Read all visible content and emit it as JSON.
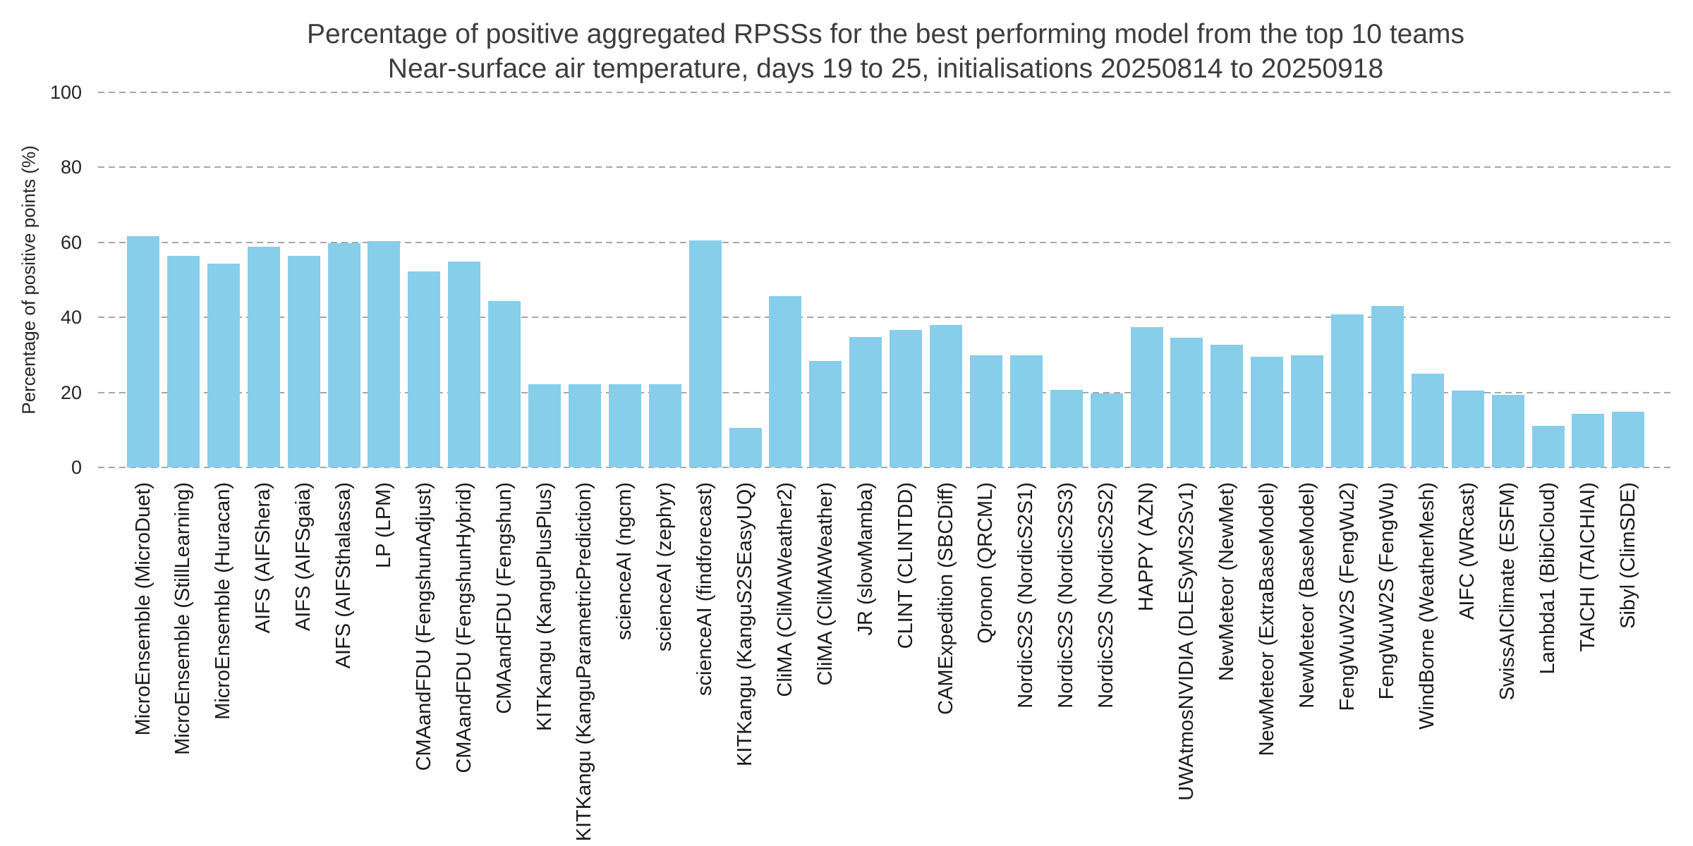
{
  "chart_data": {
    "type": "bar",
    "title": "Percentage of positive aggregated RPSSs for the best performing model from the top 10 teams",
    "subtitle": "Near-surface air temperature, days 19 to 25, initialisations 20250814 to 20250918",
    "ylabel": "Percentage of positive points (%)",
    "ylim": [
      0,
      100
    ],
    "yticks": [
      0,
      20,
      40,
      60,
      80,
      100
    ],
    "grid": {
      "orientation": "horizontal",
      "style": "dashed",
      "color": "#a6a6a6"
    },
    "legend": "none",
    "bar_color": "#87CEEB",
    "categories": [
      "MicroEnsemble (MicroDuet)",
      "MicroEnsemble (StillLearning)",
      "MicroEnsemble (Huracan)",
      "AIFS (AIFShera)",
      "AIFS (AIFSgaia)",
      "AIFS (AIFSthalassa)",
      "LP (LPM)",
      "CMAandFDU (FengshunAdjust)",
      "CMAandFDU (FengshunHybrid)",
      "CMAandFDU (Fengshun)",
      "KITKangu (KanguPlusPlus)",
      "KITKangu (KanguParametricPrediction)",
      "scienceAI (ngcm)",
      "scienceAI (zephyr)",
      "scienceAI (findforecast)",
      "KITKangu (KanguS2SEasyUQ)",
      "CliMA (CliMAWeather2)",
      "CliMA (CliMAWeather)",
      "JR (slowMamba)",
      "CLINT (CLINTDD)",
      "CAMExpedition (SBCDiff)",
      "Qronon (QRCML)",
      "NordicS2S (NordicS2S1)",
      "NordicS2S (NordicS2S3)",
      "NordicS2S (NordicS2S2)",
      "HAPPY (AZN)",
      "UWAtmosNVIDIA (DLESyMS2Sv1)",
      "NewMeteor (NewMet)",
      "NewMeteor (ExtraBaseModel)",
      "NewMeteor (BaseModel)",
      "FengWuW2S (FengWu2)",
      "FengWuW2S (FengWu)",
      "WindBorne (WeatherMesh)",
      "AIFC (WRcast)",
      "SwissAIClimate (ESFM)",
      "Lambda1 (BibiCloud)",
      "TAICHI (TAICHIAI)",
      "Sibyl (ClimSDE)"
    ],
    "values": [
      61.6,
      56.3,
      54.4,
      58.9,
      56.3,
      59.8,
      60.4,
      52.3,
      54.8,
      44.3,
      22.2,
      22.2,
      22.2,
      22.2,
      60.6,
      10.5,
      45.7,
      28.3,
      34.8,
      36.6,
      37.9,
      29.9,
      29.9,
      20.6,
      19.8,
      37.4,
      34.6,
      32.8,
      29.6,
      29.8,
      40.7,
      43.0,
      25.0,
      20.4,
      19.3,
      11.0,
      14.2,
      14.8
    ]
  }
}
